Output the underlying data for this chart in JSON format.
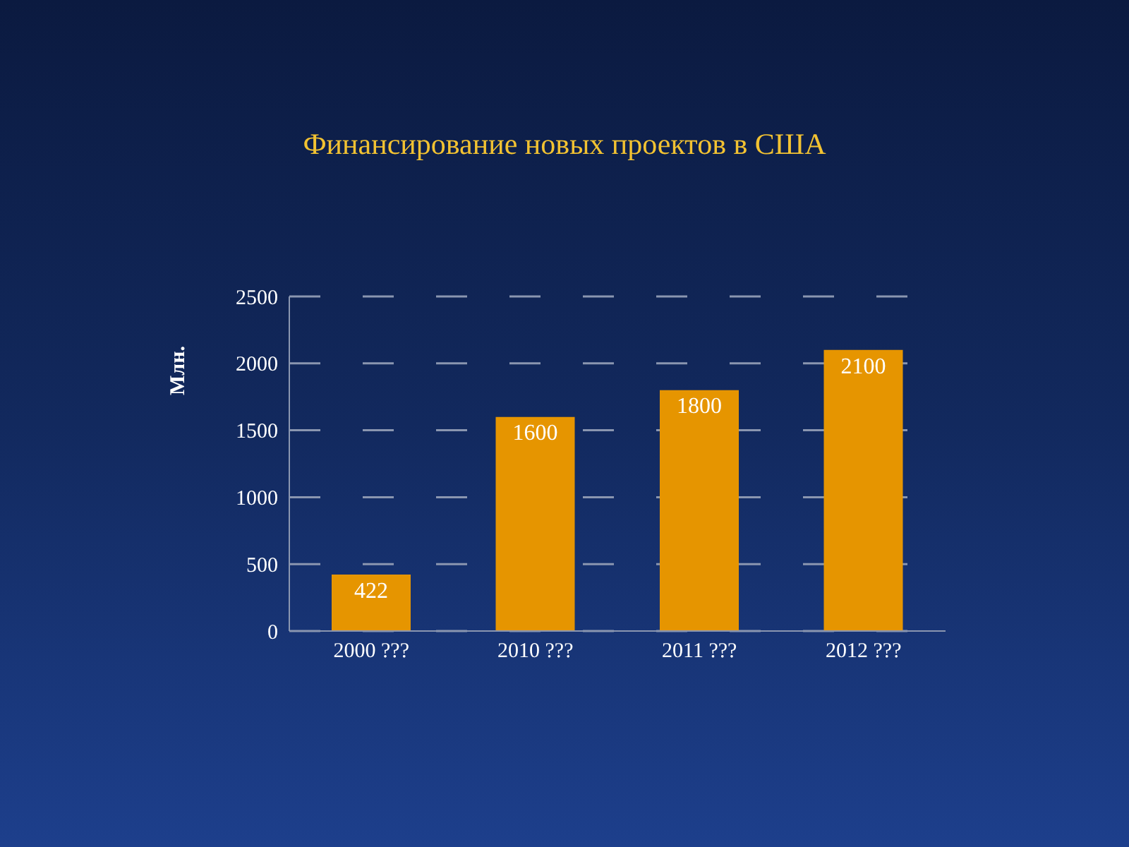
{
  "chart_data": {
    "type": "bar",
    "title": "Финансирование новых проектов в США",
    "ylabel": "Млн.",
    "categories": [
      "2000 ???",
      "2010 ???",
      "2011 ???",
      "2012 ???"
    ],
    "values": [
      422,
      1600,
      1800,
      2100
    ],
    "color": "#e69500",
    "ylim": [
      0,
      2500
    ],
    "yticks": [
      0,
      500,
      1000,
      1500,
      2000,
      2500
    ],
    "grid": "y",
    "data_labels": true
  }
}
